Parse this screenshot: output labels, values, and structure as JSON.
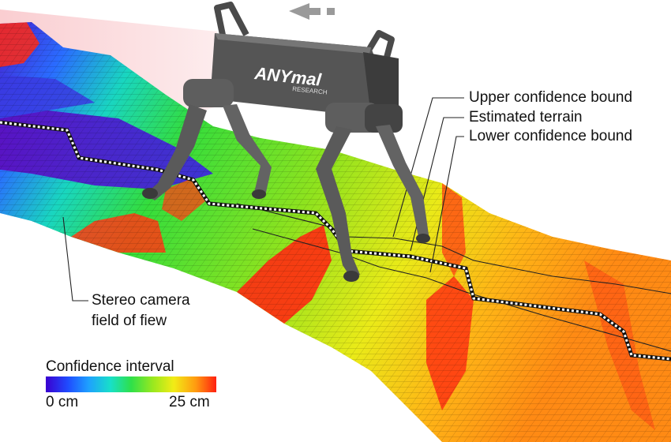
{
  "labels": {
    "upper_bound": "Upper confidence bound",
    "estimated_terrain": "Estimated terrain",
    "lower_bound": "Lower confidence bound",
    "camera_line1": "Stereo camera",
    "camera_line2": "field of fiew"
  },
  "robot": {
    "brand": "ANYmal",
    "sub": "RESEARCH"
  },
  "colorbar": {
    "title": "Confidence interval",
    "min_label": "0 cm",
    "max_label": "25 cm",
    "colors": [
      "#3a00d0",
      "#1f4cff",
      "#1ea0ff",
      "#18e0c8",
      "#2ee04a",
      "#9be81e",
      "#f2ec16",
      "#ff9a10",
      "#ff2010"
    ]
  }
}
